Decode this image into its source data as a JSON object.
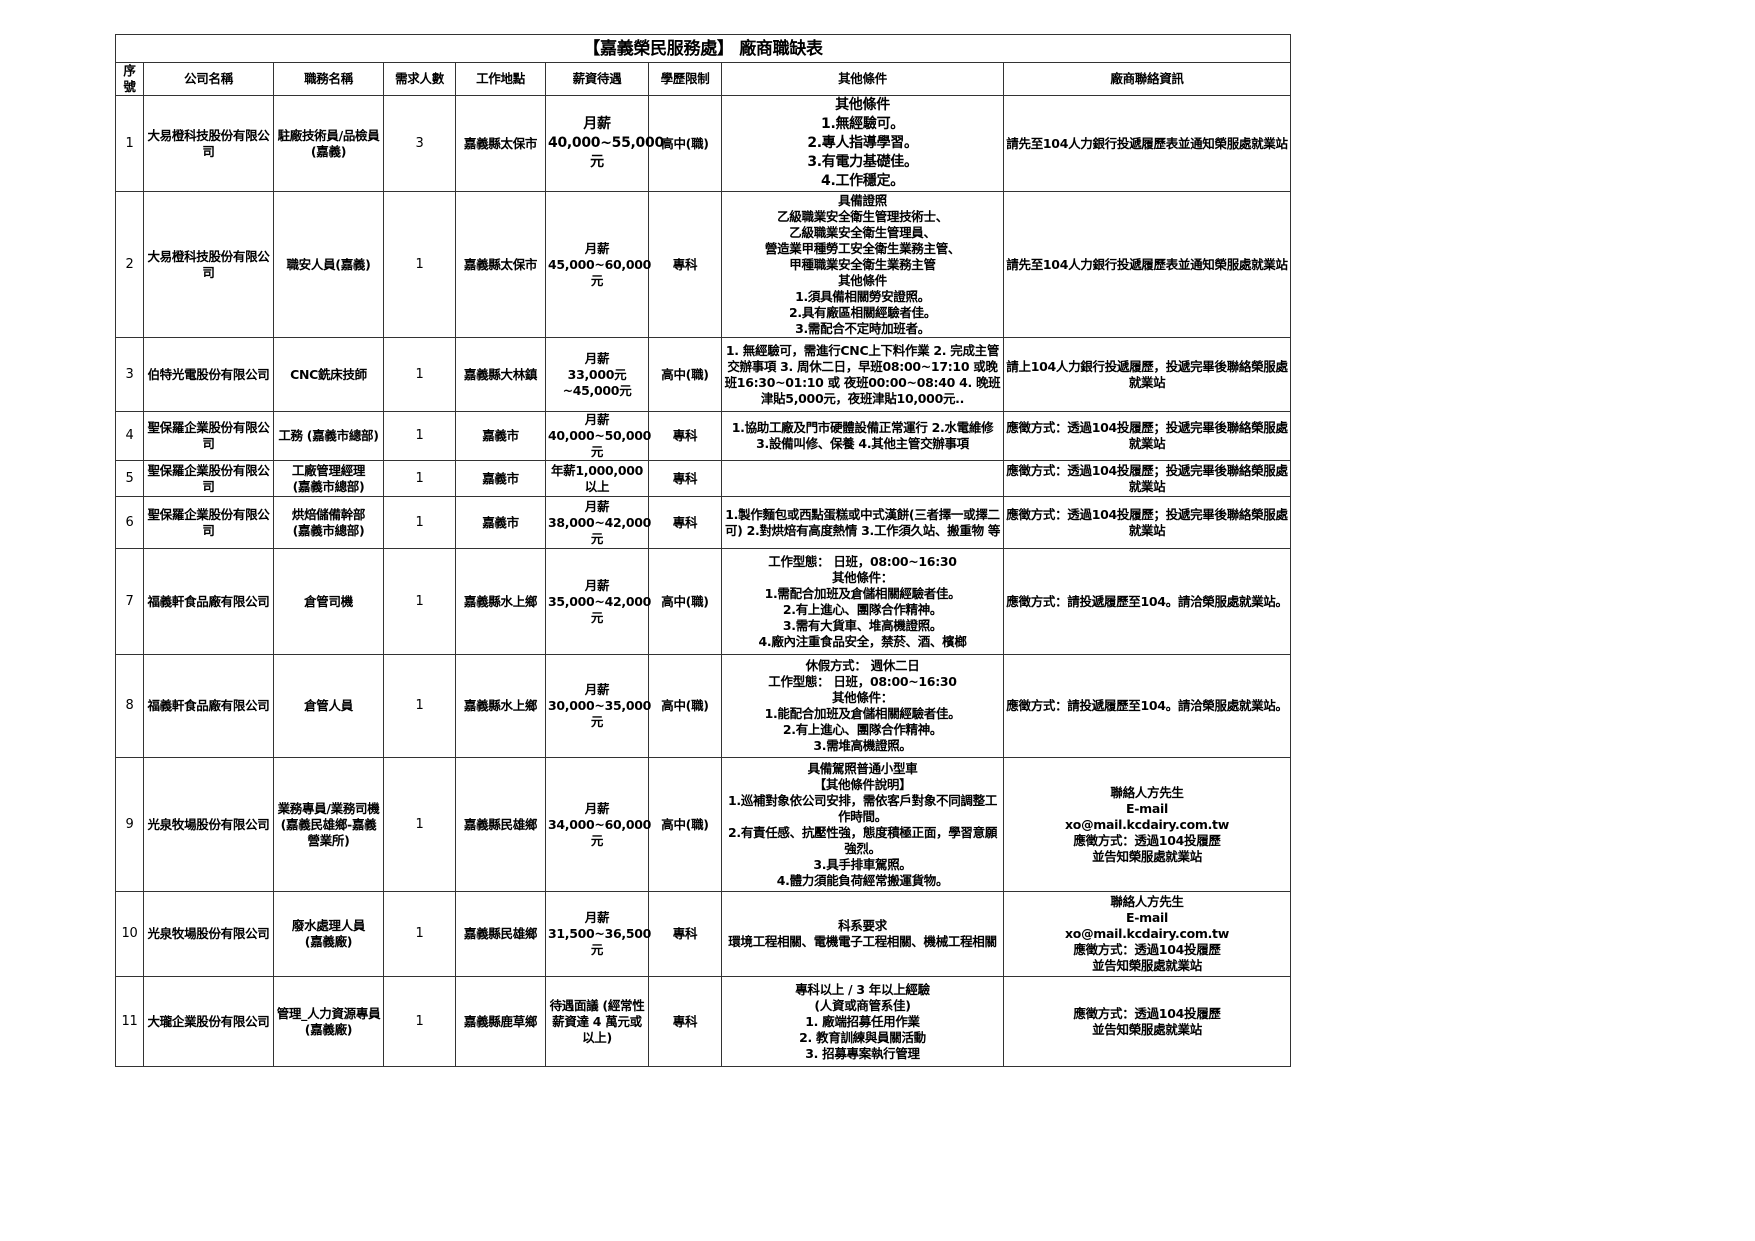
{
  "title": "【嘉義榮民服務處】 廠商職缺表",
  "headers": [
    "序號",
    "公司名稱",
    "職務名稱",
    "需求人數",
    "工作地點",
    "薪資待遇",
    "學歷限制",
    "其他條件",
    "廠商聯絡資訊"
  ],
  "rows": [
    {
      "no": "1",
      "company": "大易橙科技股份有限公司",
      "job": "駐廠技術員/品檢員(嘉義)",
      "count": "3",
      "location": "嘉義縣太保市",
      "salary": "月薪\n40,000~55,000元",
      "edu": "高中(職)",
      "other": "其他條件\n1.無經驗可。\n2.專人指導學習。\n3.有電力基礎佳。\n4.工作穩定。",
      "contact": "請先至104人力銀行投遞履歷表並通知榮服處就業站"
    },
    {
      "no": "2",
      "company": "大易橙科技股份有限公司",
      "job": "職安人員(嘉義)",
      "count": "1",
      "location": "嘉義縣太保市",
      "salary": "月薪\n45,000~60,000\n元",
      "edu": "專科",
      "other": "具備證照\n乙級職業安全衛生管理技術士、\n乙級職業安全衛生管理員、\n營造業甲種勞工安全衛生業務主管、\n甲種職業安全衛生業務主管\n其他條件\n1.須具備相關勞安證照。\n2.具有廠區相關經驗者佳。\n3.需配合不定時加班者。",
      "contact": "請先至104人力銀行投遞履歷表並通知榮服處就業站"
    },
    {
      "no": "3",
      "company": "伯特光電股份有限公司",
      "job": "CNC銑床技師",
      "count": "1",
      "location": "嘉義縣大林鎮",
      "salary": "月薪\n33,000元\n~45,000元",
      "edu": "高中(職)",
      "other": "1. 無經驗可，需進行CNC上下料作業 2. 完成主管交辦事項 3. 周休二日，早班08:00~17:10 或晚班16:30~01:10 或 夜班00:00~08:40 4. 晚班津貼5,000元，夜班津貼10,000元..",
      "contact": "請上104人力銀行投遞履歷，投遞完畢後聯絡榮服處就業站"
    },
    {
      "no": "4",
      "company": "聖保羅企業股份有限公司",
      "job": "工務 (嘉義市總部)",
      "count": "1",
      "location": "嘉義市",
      "salary": "月薪\n40,000~50,000\n元",
      "edu": "專科",
      "other": "1.協助工廠及門市硬體設備正常運行 2.水電維修 3.設備叫修、保養 4.其他主管交辦事項",
      "contact": "應徵方式：透過104投履歷；投遞完畢後聯絡榮服處就業站"
    },
    {
      "no": "5",
      "company": "聖保羅企業股份有限公司",
      "job": "工廠管理經理\n(嘉義市總部)",
      "count": "1",
      "location": "嘉義市",
      "salary": "年薪1,000,000\n以上",
      "edu": "專科",
      "other": "",
      "contact": "應徵方式：透過104投履歷；投遞完畢後聯絡榮服處就業站"
    },
    {
      "no": "6",
      "company": "聖保羅企業股份有限公司",
      "job": "烘焙儲備幹部\n(嘉義市總部)",
      "count": "1",
      "location": "嘉義市",
      "salary": "月薪\n38,000~42,000\n元",
      "edu": "專科",
      "other": "1.製作麵包或西點蛋糕或中式漢餅(三者擇一或擇二可) 2.對烘焙有高度熱情 3.工作須久站、搬重物 等",
      "contact": "應徵方式：透過104投履歷；投遞完畢後聯絡榮服處就業站"
    },
    {
      "no": "7",
      "company": "福義軒食品廠有限公司",
      "job": "倉管司機",
      "count": "1",
      "location": "嘉義縣水上鄉",
      "salary": "月薪\n35,000~42,000\n元",
      "edu": "高中(職)",
      "other": "工作型態： 日班，08:00~16:30\n其他條件：\n1.需配合加班及倉儲相關經驗者佳。\n2.有上進心、團隊合作精神。\n3.需有大貨車、堆高機證照。\n4.廠內注重食品安全，禁菸、酒、檳榔",
      "contact": "應徵方式：請投遞履歷至104。請洽榮服處就業站。"
    },
    {
      "no": "8",
      "company": "福義軒食品廠有限公司",
      "job": "倉管人員",
      "count": "1",
      "location": "嘉義縣水上鄉",
      "salary": "月薪\n30,000~35,000\n元",
      "edu": "高中(職)",
      "other": "休假方式： 週休二日\n工作型態： 日班，08:00~16:30\n其他條件：\n1.能配合加班及倉儲相關經驗者佳。\n2.有上進心、團隊合作精神。\n3.需堆高機證照。",
      "contact": "應徵方式：請投遞履歷至104。請洽榮服處就業站。"
    },
    {
      "no": "9",
      "company": "光泉牧場股份有限公司",
      "job": "業務專員/業務司機(嘉義民雄鄉-嘉義營業所)",
      "count": "1",
      "location": "嘉義縣民雄鄉",
      "salary": "月薪\n34,000~60,000\n元",
      "edu": "高中(職)",
      "other": "具備駕照普通小型車\n【其他條件說明】\n1.巡補對象依公司安排，需依客戶對象不同調整工作時間。\n2.有責任感、抗壓性強，態度積極正面，學習意願強烈。\n3.具手排車駕照。\n4.體力須能負荷經常搬運貨物。",
      "contact": "聯絡人方先生\nE-mail\nxo@mail.kcdairy.com.tw\n應徵方式：透過104投履歷\n並告知榮服處就業站"
    },
    {
      "no": "10",
      "company": "光泉牧場股份有限公司",
      "job": "廢水處理人員\n(嘉義廠)",
      "count": "1",
      "location": "嘉義縣民雄鄉",
      "salary": "月薪\n31,500~36,500\n元",
      "edu": "專科",
      "other": "科系要求\n環境工程相關、電機電子工程相關、機械工程相關",
      "contact": "聯絡人方先生\nE-mail\nxo@mail.kcdairy.com.tw\n應徵方式：透過104投履歷\n並告知榮服處就業站"
    },
    {
      "no": "11",
      "company": "大瓏企業股份有限公司",
      "job": "管理_人力資源專員(嘉義廠)",
      "count": "1",
      "location": "嘉義縣鹿草鄉",
      "salary": "待遇面議 (經常性薪資達 4 萬元或以上)",
      "edu": "專科",
      "other": "專科以上 / 3 年以上經驗\n(人資或商管系佳)\n1. 廠端招募任用作業\n2. 教育訓練與員關活動\n3. 招募專案執行管理",
      "contact": "應徵方式：透過104投履歷\n並告知榮服處就業站"
    }
  ]
}
